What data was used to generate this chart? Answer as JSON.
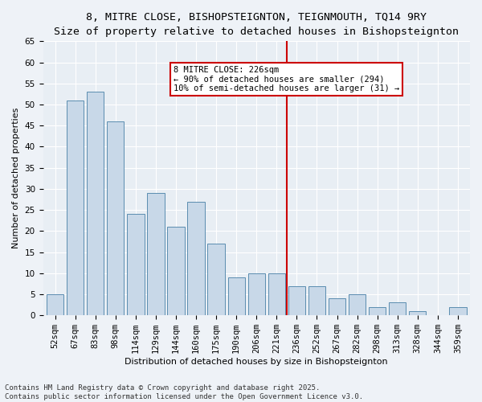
{
  "title_line1": "8, MITRE CLOSE, BISHOPSTEIGNTON, TEIGNMOUTH, TQ14 9RY",
  "title_line2": "Size of property relative to detached houses in Bishopsteignton",
  "xlabel": "Distribution of detached houses by size in Bishopsteignton",
  "ylabel": "Number of detached properties",
  "categories": [
    "52sqm",
    "67sqm",
    "83sqm",
    "98sqm",
    "114sqm",
    "129sqm",
    "144sqm",
    "160sqm",
    "175sqm",
    "190sqm",
    "206sqm",
    "221sqm",
    "236sqm",
    "252sqm",
    "267sqm",
    "282sqm",
    "298sqm",
    "313sqm",
    "328sqm",
    "344sqm",
    "359sqm"
  ],
  "values": [
    5,
    51,
    53,
    46,
    24,
    29,
    21,
    27,
    17,
    9,
    10,
    10,
    7,
    7,
    4,
    5,
    2,
    3,
    1,
    0,
    2
  ],
  "bar_color": "#c8d8e8",
  "bar_edge_color": "#5b8db0",
  "vline_x_index": 11.5,
  "vline_color": "#cc0000",
  "annotation_text": "8 MITRE CLOSE: 226sqm\n← 90% of detached houses are smaller (294)\n10% of semi-detached houses are larger (31) →",
  "annotation_box_color": "#cc0000",
  "ylim": [
    0,
    65
  ],
  "yticks": [
    0,
    5,
    10,
    15,
    20,
    25,
    30,
    35,
    40,
    45,
    50,
    55,
    60,
    65
  ],
  "background_color": "#e8eef4",
  "grid_color": "#ffffff",
  "footer_line1": "Contains HM Land Registry data © Crown copyright and database right 2025.",
  "footer_line2": "Contains public sector information licensed under the Open Government Licence v3.0.",
  "title_fontsize": 9.5,
  "subtitle_fontsize": 8.5,
  "axis_label_fontsize": 8,
  "tick_fontsize": 7.5,
  "footer_fontsize": 6.5,
  "annotation_fontsize": 7.5
}
